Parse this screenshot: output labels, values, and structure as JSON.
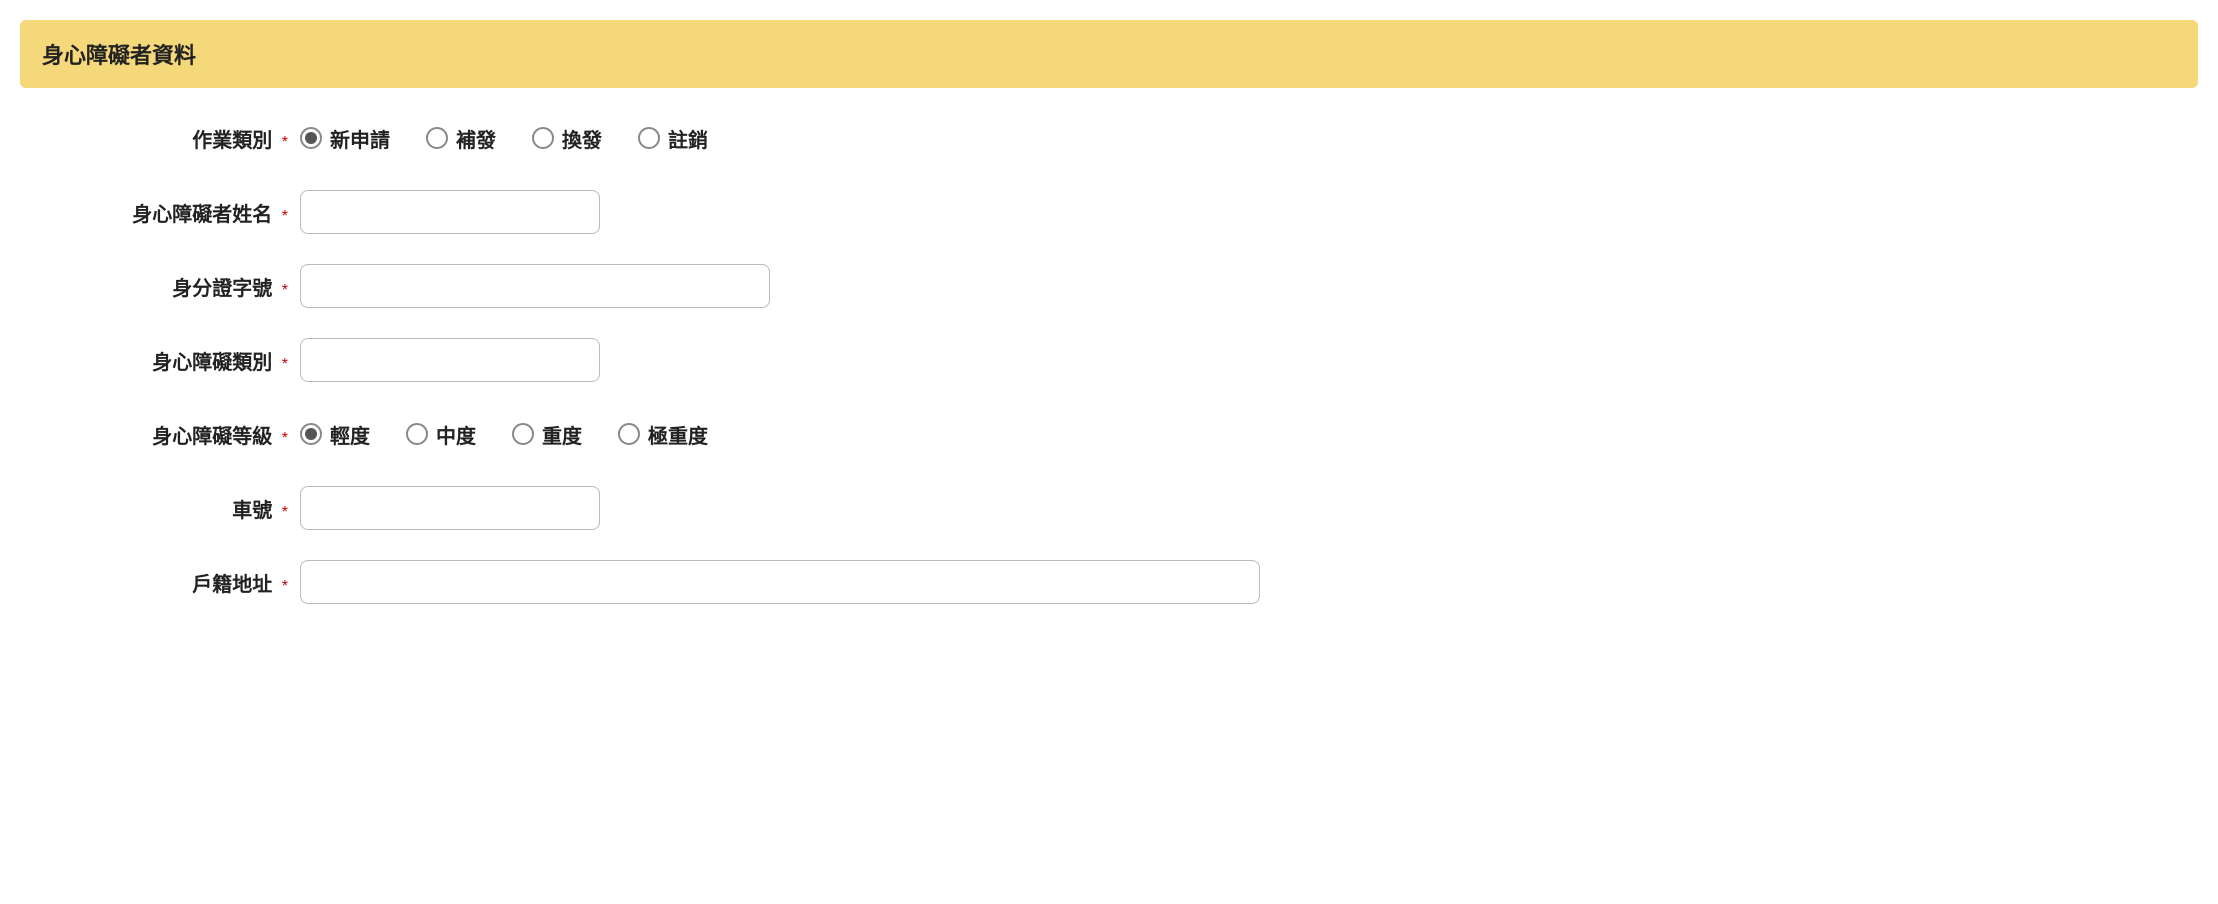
{
  "panel": {
    "title": "身心障礙者資料",
    "header_bg": "#f5d87a",
    "required_color": "#cc0000"
  },
  "fields": {
    "operation_type": {
      "label": "作業類別",
      "required_mark": "*",
      "options": [
        {
          "label": "新申請",
          "checked": true
        },
        {
          "label": "補發",
          "checked": false
        },
        {
          "label": "換發",
          "checked": false
        },
        {
          "label": "註銷",
          "checked": false
        }
      ]
    },
    "name": {
      "label": "身心障礙者姓名",
      "required_mark": "*",
      "value": ""
    },
    "id_number": {
      "label": "身分證字號",
      "required_mark": "*",
      "value": ""
    },
    "disability_type": {
      "label": "身心障礙類別",
      "required_mark": "*",
      "value": ""
    },
    "disability_level": {
      "label": "身心障礙等級",
      "required_mark": "*",
      "options": [
        {
          "label": "輕度",
          "checked": true
        },
        {
          "label": "中度",
          "checked": false
        },
        {
          "label": "重度",
          "checked": false
        },
        {
          "label": "極重度",
          "checked": false
        }
      ]
    },
    "vehicle_number": {
      "label": "車號",
      "required_mark": "*",
      "value": ""
    },
    "address": {
      "label": "戶籍地址",
      "required_mark": "*",
      "value": ""
    }
  }
}
